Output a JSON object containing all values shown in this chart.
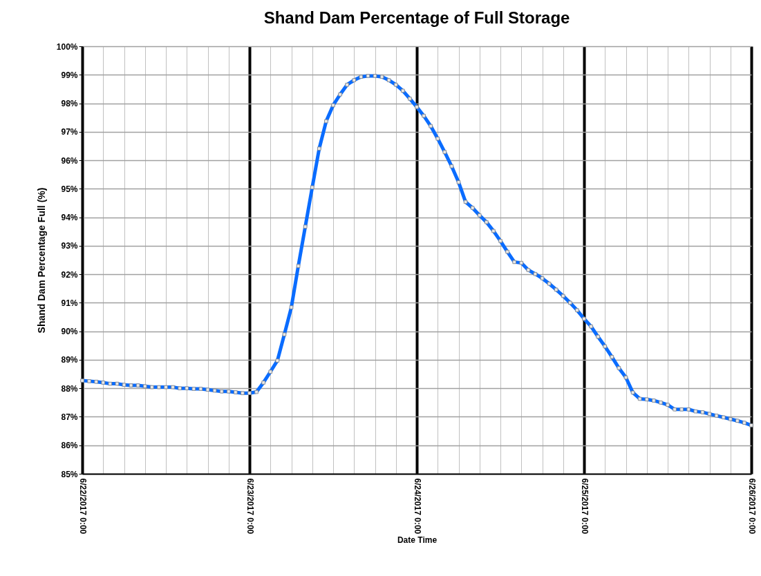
{
  "chart_data": {
    "type": "line",
    "title": "Shand Dam Percentage of Full Storage",
    "xlabel": "Date Time",
    "ylabel": "Shand Dam Percentage Full (%)",
    "x": [
      "2017-06-22T00:00",
      "2017-06-22T01:00",
      "2017-06-22T02:00",
      "2017-06-22T03:00",
      "2017-06-22T04:00",
      "2017-06-22T05:00",
      "2017-06-22T06:00",
      "2017-06-22T07:00",
      "2017-06-22T08:00",
      "2017-06-22T09:00",
      "2017-06-22T10:00",
      "2017-06-22T11:00",
      "2017-06-22T12:00",
      "2017-06-22T13:00",
      "2017-06-22T14:00",
      "2017-06-22T15:00",
      "2017-06-22T16:00",
      "2017-06-22T17:00",
      "2017-06-22T18:00",
      "2017-06-22T19:00",
      "2017-06-22T20:00",
      "2017-06-22T21:00",
      "2017-06-22T22:00",
      "2017-06-22T23:00",
      "2017-06-23T00:00",
      "2017-06-23T01:00",
      "2017-06-23T02:00",
      "2017-06-23T03:00",
      "2017-06-23T04:00",
      "2017-06-23T05:00",
      "2017-06-23T06:00",
      "2017-06-23T07:00",
      "2017-06-23T08:00",
      "2017-06-23T09:00",
      "2017-06-23T10:00",
      "2017-06-23T11:00",
      "2017-06-23T12:00",
      "2017-06-23T13:00",
      "2017-06-23T14:00",
      "2017-06-23T15:00",
      "2017-06-23T16:00",
      "2017-06-23T17:00",
      "2017-06-23T18:00",
      "2017-06-23T19:00",
      "2017-06-23T20:00",
      "2017-06-23T21:00",
      "2017-06-23T22:00",
      "2017-06-23T23:00",
      "2017-06-24T00:00",
      "2017-06-24T01:00",
      "2017-06-24T02:00",
      "2017-06-24T03:00",
      "2017-06-24T04:00",
      "2017-06-24T05:00",
      "2017-06-24T06:00",
      "2017-06-24T07:00",
      "2017-06-24T08:00",
      "2017-06-24T09:00",
      "2017-06-24T10:00",
      "2017-06-24T11:00",
      "2017-06-24T12:00",
      "2017-06-24T13:00",
      "2017-06-24T14:00",
      "2017-06-24T15:00",
      "2017-06-24T16:00",
      "2017-06-24T17:00",
      "2017-06-24T18:00",
      "2017-06-24T19:00",
      "2017-06-24T20:00",
      "2017-06-24T21:00",
      "2017-06-24T22:00",
      "2017-06-24T23:00",
      "2017-06-25T00:00",
      "2017-06-25T01:00",
      "2017-06-25T02:00",
      "2017-06-25T03:00",
      "2017-06-25T04:00",
      "2017-06-25T05:00",
      "2017-06-25T06:00",
      "2017-06-25T07:00",
      "2017-06-25T08:00",
      "2017-06-25T09:00",
      "2017-06-25T10:00",
      "2017-06-25T11:00",
      "2017-06-25T12:00",
      "2017-06-25T13:00",
      "2017-06-25T14:00",
      "2017-06-25T15:00",
      "2017-06-25T16:00",
      "2017-06-25T17:00",
      "2017-06-25T18:00",
      "2017-06-25T19:00",
      "2017-06-25T20:00",
      "2017-06-25T21:00",
      "2017-06-25T22:00",
      "2017-06-25T23:00",
      "2017-06-26T00:00"
    ],
    "series": [
      {
        "color": "#0a6cff",
        "values": [
          88.27,
          88.25,
          88.23,
          88.2,
          88.16,
          88.16,
          88.12,
          88.1,
          88.1,
          88.07,
          88.04,
          88.04,
          88.04,
          88.04,
          88.0,
          88.0,
          87.98,
          87.98,
          87.95,
          87.92,
          87.89,
          87.89,
          87.86,
          87.83,
          87.83,
          87.87,
          88.2,
          88.58,
          88.97,
          89.89,
          90.84,
          92.29,
          93.67,
          95.05,
          96.41,
          97.37,
          97.93,
          98.31,
          98.65,
          98.81,
          98.93,
          98.96,
          98.96,
          98.93,
          98.81,
          98.65,
          98.44,
          98.16,
          97.87,
          97.56,
          97.2,
          96.76,
          96.29,
          95.79,
          95.23,
          94.54,
          94.33,
          94.07,
          93.83,
          93.52,
          93.17,
          92.79,
          92.43,
          92.4,
          92.15,
          92.01,
          91.86,
          91.67,
          91.46,
          91.24,
          91.0,
          90.74,
          90.44,
          90.17,
          89.81,
          89.47,
          89.1,
          88.71,
          88.38,
          87.85,
          87.63,
          87.61,
          87.57,
          87.5,
          87.42,
          87.26,
          87.26,
          87.26,
          87.19,
          87.16,
          87.1,
          87.04,
          86.98,
          86.92,
          86.86,
          86.79,
          86.7
        ]
      }
    ],
    "marker": "square",
    "line_style": "solid",
    "grid": true,
    "xlim": [
      "2017-06-22T00:00",
      "2017-06-26T00:00"
    ],
    "xticks": [
      {
        "value": "2017-06-22T00:00",
        "label": "6/22/2017 0:00"
      },
      {
        "value": "2017-06-22T03:00",
        "label": null
      },
      {
        "value": "2017-06-22T06:00",
        "label": null
      },
      {
        "value": "2017-06-22T09:00",
        "label": null
      },
      {
        "value": "2017-06-22T12:00",
        "label": null
      },
      {
        "value": "2017-06-22T15:00",
        "label": null
      },
      {
        "value": "2017-06-22T18:00",
        "label": null
      },
      {
        "value": "2017-06-22T21:00",
        "label": null
      },
      {
        "value": "2017-06-23T00:00",
        "label": "6/23/2017 0:00"
      },
      {
        "value": "2017-06-23T03:00",
        "label": null
      },
      {
        "value": "2017-06-23T06:00",
        "label": null
      },
      {
        "value": "2017-06-23T09:00",
        "label": null
      },
      {
        "value": "2017-06-23T12:00",
        "label": null
      },
      {
        "value": "2017-06-23T15:00",
        "label": null
      },
      {
        "value": "2017-06-23T18:00",
        "label": null
      },
      {
        "value": "2017-06-23T21:00",
        "label": null
      },
      {
        "value": "2017-06-24T00:00",
        "label": "6/24/2017 0:00"
      },
      {
        "value": "2017-06-24T03:00",
        "label": null
      },
      {
        "value": "2017-06-24T06:00",
        "label": null
      },
      {
        "value": "2017-06-24T09:00",
        "label": null
      },
      {
        "value": "2017-06-24T12:00",
        "label": null
      },
      {
        "value": "2017-06-24T15:00",
        "label": null
      },
      {
        "value": "2017-06-24T18:00",
        "label": null
      },
      {
        "value": "2017-06-24T21:00",
        "label": null
      },
      {
        "value": "2017-06-25T00:00",
        "label": "6/25/2017 0:00"
      },
      {
        "value": "2017-06-25T03:00",
        "label": null
      },
      {
        "value": "2017-06-25T06:00",
        "label": null
      },
      {
        "value": "2017-06-25T09:00",
        "label": null
      },
      {
        "value": "2017-06-25T12:00",
        "label": null
      },
      {
        "value": "2017-06-25T15:00",
        "label": null
      },
      {
        "value": "2017-06-25T18:00",
        "label": null
      },
      {
        "value": "2017-06-25T21:00",
        "label": null
      },
      {
        "value": "2017-06-26T00:00",
        "label": "6/26/2017 0:00"
      }
    ],
    "ylim": [
      85,
      100
    ],
    "yticks": [
      {
        "value": 85,
        "label": "85%"
      },
      {
        "value": 86,
        "label": "86%"
      },
      {
        "value": 87,
        "label": "87%"
      },
      {
        "value": 88,
        "label": "88%"
      },
      {
        "value": 89,
        "label": "89%"
      },
      {
        "value": 90,
        "label": "90%"
      },
      {
        "value": 91,
        "label": "91%"
      },
      {
        "value": 92,
        "label": "92%"
      },
      {
        "value": 93,
        "label": "93%"
      },
      {
        "value": 94,
        "label": "94%"
      },
      {
        "value": 95,
        "label": "95%"
      },
      {
        "value": 96,
        "label": "96%"
      },
      {
        "value": 97,
        "label": "97%"
      },
      {
        "value": 98,
        "label": "98%"
      },
      {
        "value": 99,
        "label": "99%"
      },
      {
        "value": 100,
        "label": "100%"
      }
    ]
  }
}
